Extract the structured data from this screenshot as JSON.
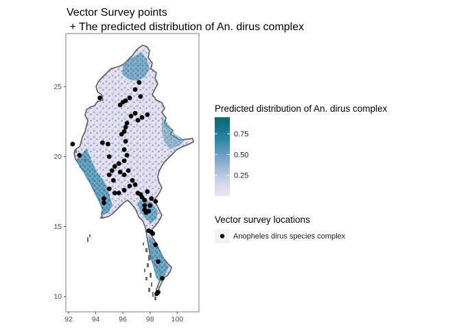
{
  "figure": {
    "title_line1": "Vector Survey points",
    "title_line2": " + The predicted distribution of An. dirus complex"
  },
  "map": {
    "region": "Myanmar",
    "x_ticks": [
      "92",
      "94",
      "96",
      "98",
      "100"
    ],
    "y_ticks": [
      "25",
      "20",
      "15",
      "10"
    ],
    "x_range": [
      91.8,
      101.6
    ],
    "y_range": [
      8.9,
      28.8
    ],
    "panel_background": "#ffffff",
    "panel_border_color": "#7f7f7f",
    "country_outline_color": "#5a5a5a",
    "no_data_color": "#6b6b6b"
  },
  "legend": {
    "fill": {
      "title": "Predicted distribution of An. dirus complex",
      "breaks": [
        "0.75",
        "0.50",
        "0.25"
      ],
      "break_values": [
        0.75,
        0.5,
        0.25
      ],
      "range": [
        0.0,
        0.95
      ],
      "colors": [
        "#ede3f1",
        "#d8d8eb",
        "#b6c3de",
        "#89aed0",
        "#5a99be",
        "#2e86a6",
        "#16758a",
        "#0b6b6c"
      ]
    },
    "points": {
      "title": "Vector survey locations",
      "entry_label": "Anopheles dirus species complex",
      "point_color": "#000000",
      "key_background": "#f2f2f2"
    }
  },
  "survey_points": [
    [
      97.2,
      25.3
    ],
    [
      96.9,
      24.8
    ],
    [
      96.5,
      24.2
    ],
    [
      96.2,
      24.0
    ],
    [
      96.0,
      23.9
    ],
    [
      95.8,
      23.7
    ],
    [
      97.3,
      24.3
    ],
    [
      94.3,
      24.2
    ],
    [
      96.9,
      23.1
    ],
    [
      96.6,
      22.9
    ],
    [
      97.1,
      22.6
    ],
    [
      97.4,
      22.8
    ],
    [
      97.8,
      23.0
    ],
    [
      96.3,
      22.4
    ],
    [
      96.2,
      22.1
    ],
    [
      96.1,
      21.8
    ],
    [
      95.9,
      21.6
    ],
    [
      96.2,
      21.1
    ],
    [
      96.1,
      20.5
    ],
    [
      96.3,
      20.1
    ],
    [
      96.1,
      19.7
    ],
    [
      95.7,
      19.5
    ],
    [
      95.4,
      19.3
    ],
    [
      95.2,
      19.0
    ],
    [
      95.0,
      18.7
    ],
    [
      95.8,
      18.9
    ],
    [
      96.1,
      18.7
    ],
    [
      96.4,
      19.0
    ],
    [
      96.7,
      18.3
    ],
    [
      96.9,
      18.0
    ],
    [
      96.5,
      17.9
    ],
    [
      96.1,
      17.6
    ],
    [
      95.7,
      17.4
    ],
    [
      95.4,
      17.4
    ],
    [
      95.0,
      17.7
    ],
    [
      95.3,
      18.3
    ],
    [
      95.0,
      20.0
    ],
    [
      94.9,
      20.9
    ],
    [
      94.5,
      21.0
    ],
    [
      92.3,
      20.9
    ],
    [
      92.8,
      20.1
    ],
    [
      94.6,
      17.0
    ],
    [
      94.6,
      16.7
    ],
    [
      97.1,
      17.4
    ],
    [
      97.4,
      17.1
    ],
    [
      97.6,
      16.9
    ],
    [
      97.6,
      16.5
    ],
    [
      97.6,
      16.2
    ],
    [
      97.7,
      16.0
    ],
    [
      97.9,
      16.1
    ],
    [
      98.0,
      16.5
    ],
    [
      98.1,
      17.0
    ],
    [
      97.8,
      17.5
    ],
    [
      97.3,
      17.3
    ],
    [
      98.4,
      16.8
    ],
    [
      97.9,
      14.7
    ],
    [
      98.1,
      14.6
    ],
    [
      98.2,
      14.5
    ],
    [
      98.4,
      13.7
    ],
    [
      98.6,
      12.5
    ],
    [
      98.5,
      10.2
    ],
    [
      98.6,
      10.3
    ],
    [
      98.9,
      11.3
    ]
  ]
}
